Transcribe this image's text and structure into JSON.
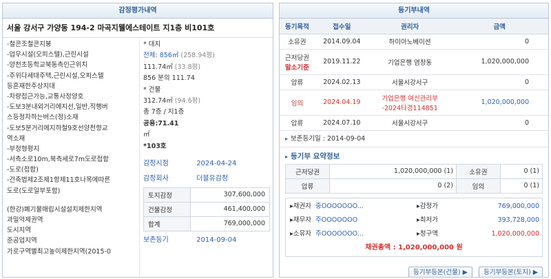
{
  "left": {
    "header": "감정평가내역",
    "address": "서울 강서구 가양동 194-2 마곡지웰에스테이트 지1층 비101호",
    "features": [
      "-철콘조철콘지붕",
      "-업무시설(오피스텔),근린시설",
      "-양천초등학교북동측인근위치",
      "-주위다세대주택,근린시설,오피스텔",
      "등혼재한주상지대",
      "-차량접근가능,교통사정양호",
      "-도보3분내외거리에지선,일반,직행버",
      "스등정차하는버스(정)소재",
      "-도보5분거리에지하철9호선양천향교",
      "역소재",
      "-부정형평지",
      "-서측소로10m,북측세로7m도로접합",
      "-도로(접합)",
      "-건축법제2조제1항제11호나목에따른",
      "도로(도로일부포함)"
    ],
    "zones": [
      "(한강)폐기물매립시설설치제한지역",
      "과밀억제권역",
      "도시지역",
      "준공업지역",
      "가로구역별최고높이제한지역(2015-0"
    ],
    "land": {
      "title": "* 대지",
      "total_label": "전체:",
      "total_value": "856㎡",
      "total_pyeong": "(258.94평)",
      "share_value": "111.74㎡",
      "share_pyeong": "(33.8평)",
      "share_text": "856 분의 111.74"
    },
    "building": {
      "title": "* 건물",
      "area": "312.74㎡",
      "area_pyeong": "(94.6평)",
      "floors": "총 7층 / 지1층",
      "common": "공용:71.41",
      "unit_sqm": "㎡",
      "unit": "*103호"
    },
    "appraisal": {
      "date_label": "감정시점",
      "date_value": "2024-04-24",
      "company_label": "감정회사",
      "company_value": "더블유감정",
      "rows": [
        {
          "k": "토지감정",
          "v": "307,600,000"
        },
        {
          "k": "건물감정",
          "v": "461,400,000"
        },
        {
          "k": "합계",
          "v": "769,000,000"
        }
      ],
      "preserve_label": "보존등기",
      "preserve_value": "2014-09-04"
    }
  },
  "right": {
    "header": "등기부내역",
    "columns": [
      "등기목적",
      "접수일",
      "권리자",
      "금액"
    ],
    "rows": [
      {
        "purpose": "소유권",
        "date": "2014.09.04",
        "holder": "하이아노베이션",
        "amount": "0",
        "tall": false,
        "red": false
      },
      {
        "purpose": "근저당권",
        "purpose_sub": "말소기준",
        "date": "2019.11.22",
        "holder": "기업은행 염창동",
        "amount": "1,020,000,000",
        "tall": true,
        "red": false
      },
      {
        "purpose": "압류",
        "date": "2024.02.13",
        "holder": "서울시강서구",
        "amount": "0",
        "tall": false,
        "red": false
      },
      {
        "purpose": "임의",
        "date": "2024.04.19",
        "holder": "기업은행 여신관리부",
        "holder_sub": "-2024타경114851",
        "amount": "1,020,000,000",
        "tall": true,
        "red": true
      },
      {
        "purpose": "압류",
        "date": "2024.07.10",
        "holder": "서울시강서구",
        "amount": "0",
        "tall": false,
        "red": false
      }
    ],
    "preserve_note": "보존등기일 : 2014-09-04",
    "summary_title": "등기부 요약정보",
    "summary": [
      {
        "k1": "근저당권",
        "v1": "1,020,000,000",
        "c1": "(1)",
        "k2": "소유권",
        "v2": "0",
        "c2": "(1)"
      },
      {
        "k1": "압류",
        "v1": "0",
        "c1": "(2)",
        "k2": "임의",
        "v2": "0",
        "c2": "(1)"
      }
    ],
    "parties": [
      {
        "k1": "▸채권자",
        "v1": "중OOOOOOO...",
        "k2": "▸감정가",
        "v2": "769,000,000",
        "v2color": "blue"
      },
      {
        "k1": "▸채무자",
        "v1": "주OOOOOOO",
        "k2": "▸최저가",
        "v2": "393,728,000",
        "v2color": "blue"
      },
      {
        "k1": "▸소유자",
        "v1": "주OOOOOOO...",
        "k2": "▸청구액",
        "v2": "1,020,000,000",
        "v2color": "red"
      }
    ],
    "total": "채권총액 : 1,020,000,000 원",
    "buttons": [
      "등기부등본(건물) ▶",
      "등기부등본(토지) ▶"
    ]
  }
}
